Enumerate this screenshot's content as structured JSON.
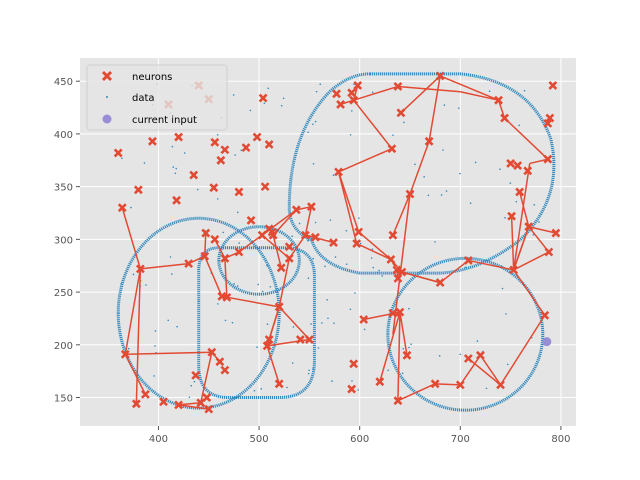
{
  "chart_data": {
    "type": "scatter",
    "xlim": [
      322,
      815
    ],
    "ylim": [
      123,
      472
    ],
    "xticks": [
      400,
      500,
      600,
      700,
      800
    ],
    "yticks": [
      150,
      200,
      250,
      300,
      350,
      400,
      450
    ],
    "grid": true,
    "legend": {
      "position": "top-left",
      "entries": [
        {
          "label": "neurons",
          "marker": "x",
          "color": "#E24A33"
        },
        {
          "label": "data",
          "marker": "dot",
          "color": "#348ABD"
        },
        {
          "label": "current input",
          "marker": "circle",
          "color": "#988ED5"
        }
      ]
    },
    "neurons": [
      [
        364,
        330
      ],
      [
        382,
        272
      ],
      [
        367,
        191
      ],
      [
        387,
        153
      ],
      [
        378,
        144
      ],
      [
        405,
        146
      ],
      [
        420,
        143
      ],
      [
        442,
        145
      ],
      [
        450,
        139
      ],
      [
        448,
        150
      ],
      [
        453,
        193
      ],
      [
        461,
        184
      ],
      [
        466,
        176
      ],
      [
        437,
        171
      ],
      [
        430,
        277
      ],
      [
        446,
        284
      ],
      [
        447,
        306
      ],
      [
        456,
        300
      ],
      [
        463,
        246
      ],
      [
        466,
        282
      ],
      [
        468,
        245
      ],
      [
        480,
        288
      ],
      [
        503,
        304
      ],
      [
        510,
        310
      ],
      [
        514,
        304
      ],
      [
        522,
        273
      ],
      [
        530,
        282
      ],
      [
        520,
        236
      ],
      [
        510,
        205
      ],
      [
        508,
        199
      ],
      [
        520,
        163
      ],
      [
        550,
        205
      ],
      [
        530,
        293
      ],
      [
        546,
        304
      ],
      [
        552,
        331
      ],
      [
        537,
        328
      ],
      [
        574,
        297
      ],
      [
        556,
        302
      ],
      [
        599,
        307
      ],
      [
        597,
        296
      ],
      [
        631,
        281
      ],
      [
        637,
        271
      ],
      [
        638,
        263
      ],
      [
        642,
        269
      ],
      [
        640,
        231
      ],
      [
        633,
        230
      ],
      [
        647,
        190
      ],
      [
        604,
        224
      ],
      [
        620,
        165
      ],
      [
        638,
        147
      ],
      [
        675,
        163
      ],
      [
        700,
        162
      ],
      [
        680,
        259
      ],
      [
        708,
        280
      ],
      [
        720,
        190
      ],
      [
        740,
        162
      ],
      [
        708,
        187
      ],
      [
        784,
        228
      ],
      [
        788,
        288
      ],
      [
        768,
        312
      ],
      [
        795,
        306
      ],
      [
        753,
        271
      ],
      [
        767,
        365
      ],
      [
        751,
        322
      ],
      [
        759,
        345
      ],
      [
        750,
        372
      ],
      [
        757,
        370
      ],
      [
        787,
        376
      ],
      [
        744,
        415
      ],
      [
        787,
        410
      ],
      [
        789,
        415
      ],
      [
        792,
        446
      ],
      [
        738,
        432
      ],
      [
        680,
        455
      ],
      [
        669,
        393
      ],
      [
        650,
        343
      ],
      [
        633,
        304
      ],
      [
        632,
        386
      ],
      [
        579,
        364
      ],
      [
        638,
        445
      ],
      [
        641,
        420
      ],
      [
        594,
        432
      ],
      [
        598,
        446
      ],
      [
        592,
        439
      ],
      [
        577,
        438
      ],
      [
        581,
        428
      ],
      [
        360,
        382
      ],
      [
        394,
        393
      ],
      [
        380,
        347
      ],
      [
        440,
        446
      ],
      [
        450,
        433
      ],
      [
        410,
        428
      ],
      [
        420,
        397
      ],
      [
        435,
        361
      ],
      [
        418,
        337
      ],
      [
        455,
        349
      ],
      [
        462,
        375
      ],
      [
        456,
        392
      ],
      [
        466,
        385
      ],
      [
        487,
        387
      ],
      [
        480,
        345
      ],
      [
        498,
        397
      ],
      [
        504,
        434
      ],
      [
        510,
        390
      ],
      [
        506,
        350
      ],
      [
        492,
        318
      ],
      [
        513,
        307
      ],
      [
        594,
        182
      ],
      [
        592,
        158
      ],
      [
        541,
        205
      ]
    ],
    "neuron_edges": [
      [
        [
          364,
          330
        ],
        [
          382,
          272
        ]
      ],
      [
        [
          382,
          272
        ],
        [
          430,
          277
        ]
      ],
      [
        [
          430,
          277
        ],
        [
          446,
          284
        ]
      ],
      [
        [
          446,
          284
        ],
        [
          447,
          306
        ]
      ],
      [
        [
          382,
          272
        ],
        [
          367,
          191
        ]
      ],
      [
        [
          367,
          191
        ],
        [
          387,
          153
        ]
      ],
      [
        [
          367,
          191
        ],
        [
          453,
          193
        ]
      ],
      [
        [
          382,
          272
        ],
        [
          378,
          144
        ]
      ],
      [
        [
          453,
          193
        ],
        [
          461,
          184
        ]
      ],
      [
        [
          453,
          193
        ],
        [
          442,
          145
        ]
      ],
      [
        [
          442,
          145
        ],
        [
          420,
          143
        ]
      ],
      [
        [
          420,
          143
        ],
        [
          450,
          139
        ]
      ],
      [
        [
          446,
          284
        ],
        [
          463,
          246
        ]
      ],
      [
        [
          463,
          246
        ],
        [
          520,
          236
        ]
      ],
      [
        [
          520,
          236
        ],
        [
          550,
          205
        ]
      ],
      [
        [
          520,
          236
        ],
        [
          530,
          282
        ]
      ],
      [
        [
          520,
          236
        ],
        [
          508,
          199
        ]
      ],
      [
        [
          508,
          199
        ],
        [
          520,
          163
        ]
      ],
      [
        [
          508,
          199
        ],
        [
          550,
          205
        ]
      ],
      [
        [
          520,
          236
        ],
        [
          510,
          205
        ]
      ],
      [
        [
          466,
          282
        ],
        [
          480,
          288
        ]
      ],
      [
        [
          480,
          288
        ],
        [
          503,
          304
        ]
      ],
      [
        [
          503,
          304
        ],
        [
          530,
          282
        ]
      ],
      [
        [
          530,
          282
        ],
        [
          546,
          304
        ]
      ],
      [
        [
          466,
          282
        ],
        [
          456,
          300
        ]
      ],
      [
        [
          466,
          282
        ],
        [
          468,
          245
        ]
      ],
      [
        [
          546,
          304
        ],
        [
          552,
          331
        ]
      ],
      [
        [
          552,
          331
        ],
        [
          537,
          328
        ]
      ],
      [
        [
          537,
          328
        ],
        [
          514,
          304
        ]
      ],
      [
        [
          546,
          304
        ],
        [
          574,
          297
        ]
      ],
      [
        [
          546,
          304
        ],
        [
          556,
          302
        ]
      ],
      [
        [
          514,
          304
        ],
        [
          522,
          273
        ]
      ],
      [
        [
          503,
          304
        ],
        [
          510,
          310
        ]
      ],
      [
        [
          503,
          304
        ],
        [
          537,
          328
        ]
      ],
      [
        [
          579,
          364
        ],
        [
          599,
          307
        ]
      ],
      [
        [
          579,
          364
        ],
        [
          632,
          386
        ]
      ],
      [
        [
          579,
          364
        ],
        [
          597,
          296
        ]
      ],
      [
        [
          597,
          296
        ],
        [
          631,
          281
        ]
      ],
      [
        [
          631,
          281
        ],
        [
          637,
          271
        ]
      ],
      [
        [
          631,
          281
        ],
        [
          642,
          269
        ]
      ],
      [
        [
          642,
          269
        ],
        [
          680,
          259
        ]
      ],
      [
        [
          680,
          259
        ],
        [
          708,
          280
        ]
      ],
      [
        [
          708,
          280
        ],
        [
          753,
          271
        ]
      ],
      [
        [
          753,
          271
        ],
        [
          788,
          288
        ]
      ],
      [
        [
          788,
          288
        ],
        [
          768,
          312
        ]
      ],
      [
        [
          768,
          312
        ],
        [
          795,
          306
        ]
      ],
      [
        [
          768,
          312
        ],
        [
          753,
          271
        ]
      ],
      [
        [
          753,
          271
        ],
        [
          784,
          228
        ]
      ],
      [
        [
          784,
          228
        ],
        [
          740,
          162
        ]
      ],
      [
        [
          740,
          162
        ],
        [
          720,
          190
        ]
      ],
      [
        [
          720,
          190
        ],
        [
          700,
          162
        ]
      ],
      [
        [
          700,
          162
        ],
        [
          675,
          163
        ]
      ],
      [
        [
          675,
          163
        ],
        [
          638,
          147
        ]
      ],
      [
        [
          740,
          162
        ],
        [
          708,
          187
        ]
      ],
      [
        [
          638,
          147
        ],
        [
          640,
          231
        ]
      ],
      [
        [
          640,
          231
        ],
        [
          647,
          190
        ]
      ],
      [
        [
          640,
          231
        ],
        [
          604,
          224
        ]
      ],
      [
        [
          640,
          231
        ],
        [
          620,
          165
        ]
      ],
      [
        [
          640,
          231
        ],
        [
          633,
          230
        ]
      ],
      [
        [
          753,
          271
        ],
        [
          768,
          312
        ]
      ],
      [
        [
          753,
          271
        ],
        [
          751,
          322
        ]
      ],
      [
        [
          768,
          312
        ],
        [
          759,
          345
        ]
      ],
      [
        [
          753,
          271
        ],
        [
          769,
          372
        ]
      ],
      [
        [
          769,
          372
        ],
        [
          787,
          376
        ]
      ],
      [
        [
          787,
          376
        ],
        [
          744,
          415
        ]
      ],
      [
        [
          744,
          415
        ],
        [
          738,
          432
        ]
      ],
      [
        [
          738,
          432
        ],
        [
          680,
          455
        ]
      ],
      [
        [
          680,
          455
        ],
        [
          641,
          420
        ]
      ],
      [
        [
          680,
          455
        ],
        [
          669,
          393
        ]
      ],
      [
        [
          669,
          393
        ],
        [
          650,
          343
        ]
      ],
      [
        [
          650,
          343
        ],
        [
          633,
          304
        ]
      ],
      [
        [
          650,
          343
        ],
        [
          633,
          210
        ]
      ],
      [
        [
          738,
          432
        ],
        [
          700,
          440
        ]
      ],
      [
        [
          700,
          440
        ],
        [
          638,
          445
        ]
      ],
      [
        [
          638,
          445
        ],
        [
          594,
          432
        ]
      ],
      [
        [
          632,
          386
        ],
        [
          594,
          432
        ]
      ],
      [
        [
          594,
          432
        ],
        [
          598,
          446
        ]
      ],
      [
        [
          594,
          432
        ],
        [
          581,
          428
        ]
      ],
      [
        [
          680,
          259
        ],
        [
          642,
          269
        ]
      ],
      [
        [
          637,
          271
        ],
        [
          638,
          263
        ]
      ],
      [
        [
          631,
          281
        ],
        [
          599,
          307
        ]
      ]
    ],
    "current_input": [
      786,
      203
    ]
  }
}
